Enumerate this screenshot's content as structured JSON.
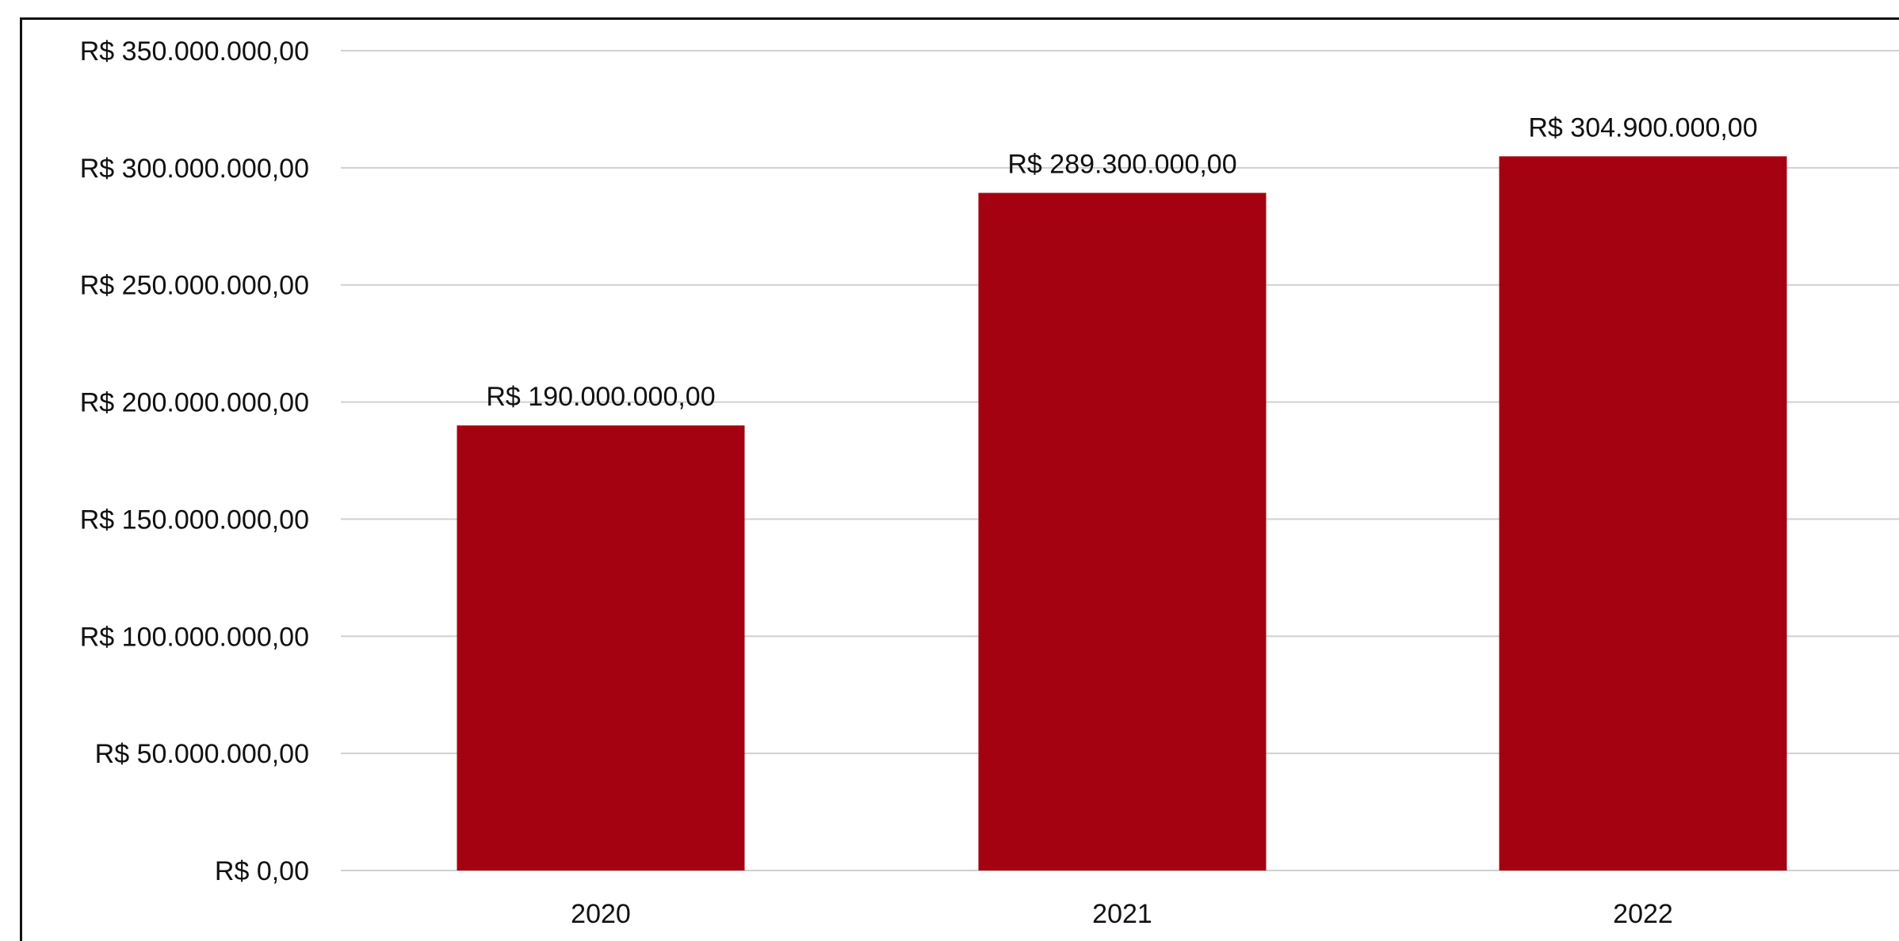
{
  "chart_data": {
    "type": "bar",
    "categories": [
      "2020",
      "2021",
      "2022"
    ],
    "values": [
      190000000,
      289300000,
      304900000
    ],
    "data_labels": [
      "R$ 190.000.000,00",
      "R$ 289.300.000,00",
      "R$ 304.900.000,00"
    ],
    "y_ticks": [
      0,
      50000000,
      100000000,
      150000000,
      200000000,
      250000000,
      300000000,
      350000000
    ],
    "y_tick_labels": [
      "R$ 0,00",
      "R$ 50.000.000,00",
      "R$ 100.000.000,00",
      "R$ 150.000.000,00",
      "R$ 200.000.000,00",
      "R$ 250.000.000,00",
      "R$ 300.000.000,00",
      "R$ 350.000.000,00"
    ],
    "ylim": [
      0,
      350000000
    ],
    "grid": true,
    "legend": "none",
    "bar_color": "#a50211",
    "grid_color": "#d0d0d0"
  }
}
